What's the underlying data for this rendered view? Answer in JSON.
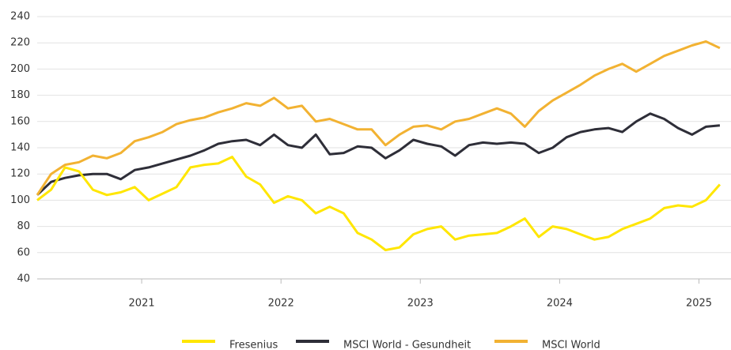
{
  "chart_data": {
    "type": "line",
    "x": [
      2020.25,
      2020.35,
      2020.45,
      2020.55,
      2020.65,
      2020.75,
      2020.85,
      2020.95,
      2021.05,
      2021.15,
      2021.25,
      2021.35,
      2021.45,
      2021.55,
      2021.65,
      2021.75,
      2021.85,
      2021.95,
      2022.05,
      2022.15,
      2022.25,
      2022.35,
      2022.45,
      2022.55,
      2022.65,
      2022.75,
      2022.85,
      2022.95,
      2023.05,
      2023.15,
      2023.25,
      2023.35,
      2023.45,
      2023.55,
      2023.65,
      2023.75,
      2023.85,
      2023.95,
      2024.05,
      2024.15,
      2024.25,
      2024.35,
      2024.45,
      2024.55,
      2024.65,
      2024.75,
      2024.85,
      2024.95,
      2025.05,
      2025.15
    ],
    "series": [
      {
        "name": "Fresenius",
        "color": "#ffe600",
        "values": [
          100,
          108,
          125,
          122,
          108,
          104,
          106,
          110,
          100,
          105,
          110,
          125,
          127,
          128,
          133,
          118,
          112,
          98,
          103,
          100,
          90,
          95,
          90,
          75,
          70,
          62,
          64,
          74,
          78,
          80,
          70,
          73,
          74,
          75,
          80,
          86,
          72,
          80,
          78,
          74,
          70,
          72,
          78,
          82,
          86,
          94,
          96,
          95,
          100,
          112
        ]
      },
      {
        "name": "MSCI World - Gesundheit",
        "color": "#2e2e38",
        "values": [
          104,
          114,
          117,
          119,
          120,
          120,
          116,
          123,
          125,
          128,
          131,
          134,
          138,
          143,
          145,
          146,
          142,
          150,
          142,
          140,
          150,
          135,
          136,
          141,
          140,
          132,
          138,
          146,
          143,
          141,
          134,
          142,
          144,
          143,
          144,
          143,
          136,
          140,
          148,
          152,
          154,
          155,
          152,
          160,
          166,
          162,
          155,
          150,
          156,
          157
        ]
      },
      {
        "name": "MSCI World",
        "color": "#f2b232",
        "values": [
          104,
          120,
          127,
          129,
          134,
          132,
          136,
          145,
          148,
          152,
          158,
          161,
          163,
          167,
          170,
          174,
          172,
          178,
          170,
          172,
          160,
          162,
          158,
          154,
          154,
          142,
          150,
          156,
          157,
          154,
          160,
          162,
          166,
          170,
          166,
          156,
          168,
          176,
          182,
          188,
          195,
          200,
          204,
          198,
          204,
          210,
          214,
          218,
          221,
          216
        ]
      }
    ],
    "xlim": [
      2020.25,
      2025.23
    ],
    "xticks": [
      2021,
      2022,
      2023,
      2024,
      2025
    ],
    "ylim": [
      40,
      240
    ],
    "yticks": [
      40,
      60,
      80,
      100,
      120,
      140,
      160,
      180,
      200,
      220,
      240
    ],
    "grid": true,
    "legend": "bottom"
  }
}
